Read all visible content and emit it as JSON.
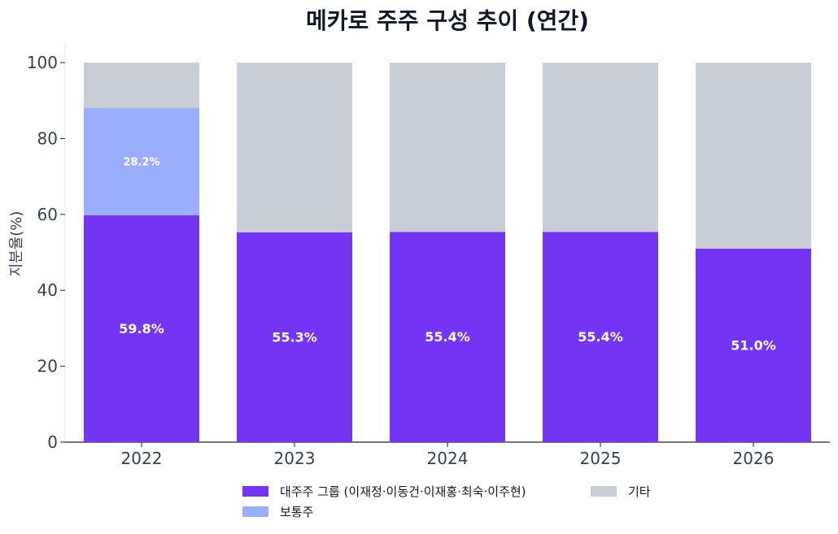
{
  "chart_data": {
    "type": "bar",
    "stacked": true,
    "title": "메카로 주주 구성 추이 (연간)",
    "xlabel": "",
    "ylabel": "지분율(%)",
    "ylim": [
      0,
      100
    ],
    "yticks": [
      "0",
      "20",
      "40",
      "60",
      "80",
      "100"
    ],
    "categories": [
      "2022",
      "2023",
      "2024",
      "2025",
      "2026"
    ],
    "series": [
      {
        "name": "대주주 그룹 (이재정·이동건·이재홍·최숙·이주현)",
        "color": "#7434F3",
        "values": [
          59.8,
          55.3,
          55.4,
          55.4,
          51.0
        ],
        "labels": [
          "59.8%",
          "55.3%",
          "55.4%",
          "55.4%",
          "51.0%"
        ]
      },
      {
        "name": "보통주",
        "color": "#9AAEFB",
        "values": [
          28.2,
          0,
          0,
          0,
          0
        ],
        "labels": [
          "28.2%",
          "",
          "",
          "",
          ""
        ]
      },
      {
        "name": "기타",
        "color": "#C9CDD6",
        "values": [
          12.0,
          44.7,
          44.6,
          44.6,
          49.0
        ],
        "labels": [
          "",
          "",
          "",
          "",
          ""
        ]
      }
    ],
    "grid": false,
    "legend_position": "bottom"
  }
}
